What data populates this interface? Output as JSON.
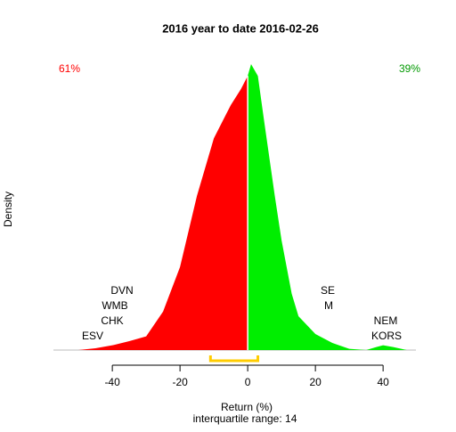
{
  "chart_data": {
    "type": "density",
    "title": "2016  year to date 2016-02-26",
    "x_label": "Return (%)",
    "y_label": "Density",
    "subtitle": "interquartile range: 14",
    "left_share": "61%",
    "right_share": "39%",
    "x": [
      -50,
      -45,
      -40,
      -35,
      -30,
      -25,
      -20,
      -15,
      -10,
      -5,
      -2,
      0,
      1,
      3,
      5,
      8,
      10,
      13,
      15,
      20,
      25,
      30,
      35,
      38,
      40,
      43,
      47
    ],
    "values": [
      0,
      0.0003,
      0.0008,
      0.0015,
      0.0023,
      0.0065,
      0.014,
      0.026,
      0.0357,
      0.0413,
      0.044,
      0.0462,
      0.0482,
      0.0462,
      0.038,
      0.026,
      0.0185,
      0.0095,
      0.0057,
      0.0027,
      0.0012,
      0.0002,
      0,
      0.0005,
      0.0008,
      0.0005,
      0
    ],
    "negative_color": "#ff0000",
    "positive_color": "#00ee00",
    "iqr": [
      -11,
      3
    ],
    "iqr_color": "#ffcc00",
    "xlim": [
      -57.4,
      49.7
    ],
    "ylim": [
      0,
      0.05
    ],
    "xticks": [
      -40,
      -20,
      0,
      20,
      40
    ],
    "annotations": [
      "DVN",
      "WMB",
      "CHK",
      "ESV",
      "SE",
      "M",
      "NEM",
      "KORS"
    ]
  }
}
